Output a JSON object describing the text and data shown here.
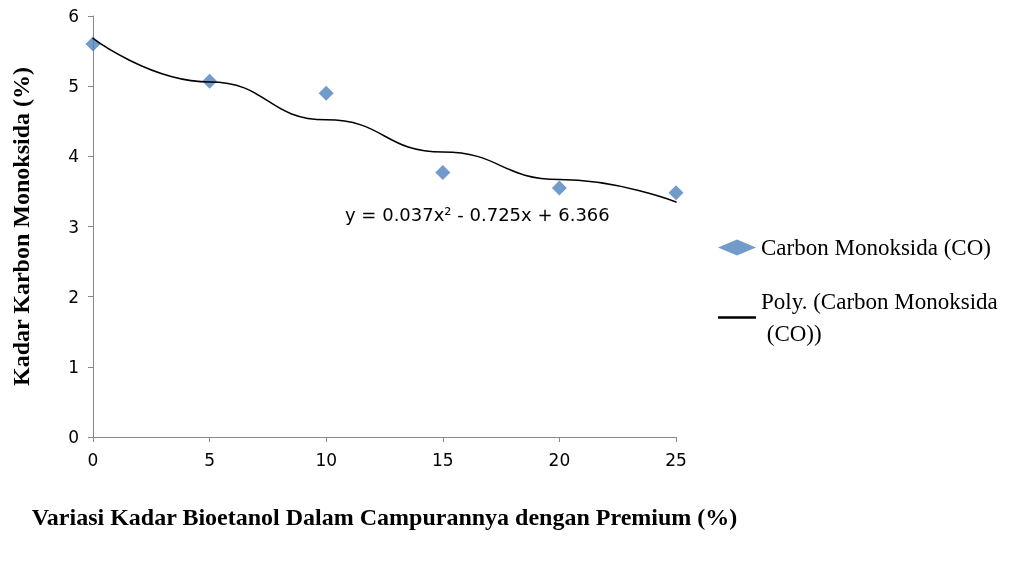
{
  "chart_data": {
    "type": "scatter",
    "xlabel": "Variasi Kadar Bioetanol Dalam Campurannya dengan Premium (%)",
    "ylabel": "Kadar Karbon Monoksida (%)",
    "x": [
      0,
      5,
      10,
      15,
      20,
      25
    ],
    "series": [
      {
        "name": "Carbon Monoksida (CO)",
        "color": "#4f81bd",
        "values": [
          5.6,
          5.07,
          4.9,
          3.77,
          3.55,
          3.48
        ],
        "marker": "diamond"
      },
      {
        "name": "Poly. (Carbon Monoksida (CO))",
        "type": "line",
        "color": "#000000",
        "x": [
          0,
          5,
          10,
          15,
          20,
          25
        ],
        "values": [
          5.68,
          5.06,
          4.52,
          4.06,
          3.67,
          3.35
        ],
        "marker": "none",
        "line_style": "solid"
      }
    ],
    "xlim": [
      0,
      25
    ],
    "xticks": [
      0,
      5,
      10,
      15,
      20,
      25
    ],
    "ylim": [
      0,
      6
    ],
    "yticks": [
      0,
      1,
      2,
      3,
      4,
      5,
      6
    ],
    "grid": false,
    "legend": "right",
    "annotations": [
      "y = 0.037x² - 0.725x + 6.366"
    ]
  }
}
